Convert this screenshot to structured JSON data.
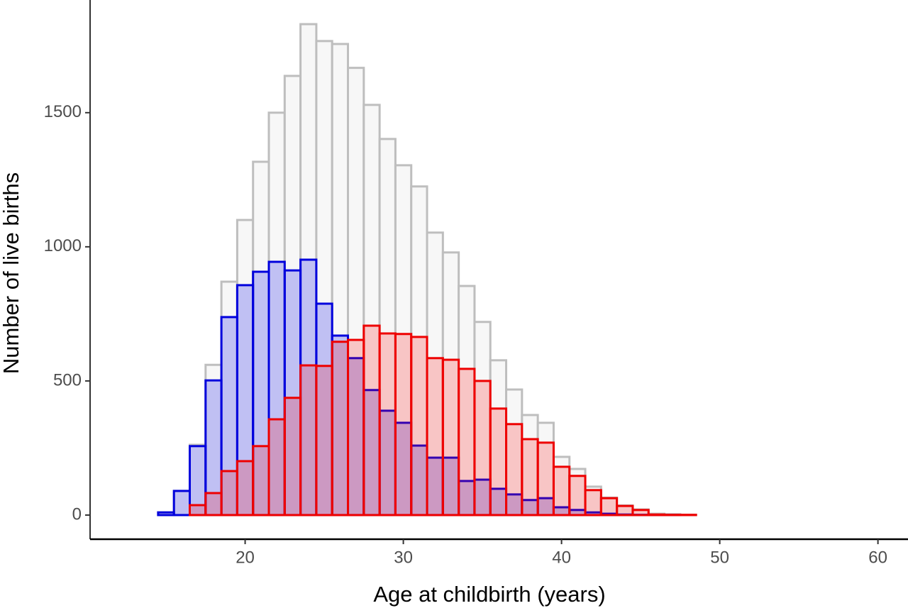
{
  "chart_data": {
    "type": "histogram",
    "x_label": "Age at childbirth (years)",
    "y_label": "Number of live births",
    "bins": [
      12.5,
      13.5,
      14.5,
      15.5,
      16.5,
      17.5,
      18.5,
      19.5,
      20.5,
      21.5,
      22.5,
      23.5,
      24.5,
      25.5,
      26.5,
      27.5,
      28.5,
      29.5,
      30.5,
      31.5,
      32.5,
      33.5,
      34.5,
      35.5,
      36.5,
      37.5,
      38.5,
      39.5,
      40.5,
      41.5,
      42.5,
      43.5,
      44.5,
      45.5,
      46.5,
      47.5,
      48.5,
      49.5
    ],
    "series": [
      {
        "color": "#bebebe",
        "fill": "#f7f7f7",
        "values": [
          0,
          0,
          10,
          90,
          262,
          560,
          870,
          1100,
          1317,
          1500,
          1637,
          1830,
          1767,
          1756,
          1667,
          1529,
          1402,
          1304,
          1225,
          1053,
          979,
          854,
          720,
          577,
          468,
          373,
          344,
          217,
          172,
          106,
          65,
          36,
          21,
          5,
          3,
          1,
          0
        ]
      },
      {
        "color": "#0000dd",
        "fill": "rgba(0,0,230,0.22)",
        "values": [
          0,
          0,
          10,
          90,
          257,
          502,
          738,
          857,
          907,
          944,
          912,
          952,
          788,
          669,
          585,
          466,
          389,
          344,
          259,
          214,
          214,
          127,
          132,
          98,
          77,
          56,
          63,
          29,
          19,
          10,
          5,
          2,
          1,
          1,
          1,
          0,
          0
        ]
      },
      {
        "color": "#ee0000",
        "fill": "rgba(255,0,0,0.2)",
        "values": [
          0,
          0,
          0,
          0,
          37,
          82,
          164,
          201,
          257,
          357,
          437,
          558,
          556,
          646,
          653,
          706,
          677,
          675,
          664,
          585,
          579,
          545,
          500,
          397,
          339,
          283,
          270,
          180,
          146,
          93,
          63,
          34,
          19,
          2,
          1,
          1,
          0
        ]
      }
    ],
    "xlim": [
      10.2,
      61.9
    ],
    "ylim": [
      -90,
      1920
    ],
    "xticks": [
      20,
      30,
      40,
      50,
      60
    ],
    "yticks": [
      0,
      500,
      1000,
      1500
    ]
  }
}
